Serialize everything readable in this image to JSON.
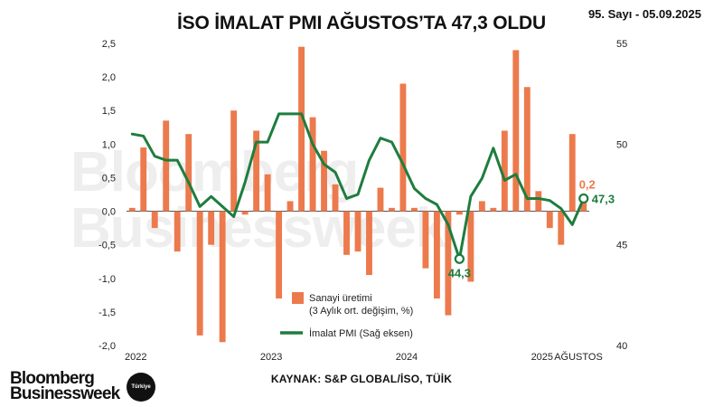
{
  "title": "İSO İMALAT PMI AĞUSTOS’TA 47,3 OLDU",
  "issue": "95. Sayı - 05.09.2025",
  "watermark": [
    "Bloomberg",
    "Businessweek"
  ],
  "source": "KAYNAK: S&P GLOBAL/İSO, TÜİK",
  "brand": {
    "line1": "Bloomberg",
    "line2": "Businessweek",
    "badge": "Türkiye"
  },
  "colors": {
    "bar": "#ec7a4c",
    "line": "#1e7d3e",
    "axis": "#444444"
  },
  "chart_data": {
    "type": "bar+line",
    "left_axis": {
      "ylim": [
        -2.0,
        2.5
      ],
      "ticks": [
        "2,5",
        "2,0",
        "1,5",
        "1,0",
        "0,5",
        "0,0",
        "-0,5",
        "-1,0",
        "-1,5",
        "-2,0"
      ]
    },
    "right_axis": {
      "ylim": [
        40,
        55
      ],
      "ticks": [
        "55",
        "50",
        "45",
        "40"
      ]
    },
    "x_labels": [
      "2022",
      "2023",
      "2024",
      "2025",
      "AĞUSTOS"
    ],
    "series": [
      {
        "name": "Sanayi üretimi",
        "subname": "(3 Aylık ort. değişim, %)",
        "kind": "bar",
        "values": [
          0.05,
          0.95,
          -0.25,
          1.35,
          -0.6,
          1.15,
          -1.85,
          -0.5,
          -1.95,
          1.5,
          -0.05,
          1.2,
          0.55,
          -1.3,
          0.15,
          2.45,
          1.4,
          0.9,
          0.4,
          -0.65,
          -0.6,
          -0.95,
          0.35,
          0.05,
          1.9,
          0.05,
          -0.85,
          -1.3,
          -1.55,
          -0.05,
          -1.05,
          0.15,
          0.05,
          1.2,
          2.4,
          1.85,
          0.3,
          -0.25,
          -0.5,
          1.15,
          0.2
        ]
      },
      {
        "name": "İmalat PMI (Sağ eksen)",
        "kind": "line",
        "values": [
          50.5,
          50.4,
          49.4,
          49.2,
          49.2,
          48.1,
          46.9,
          47.4,
          46.9,
          46.4,
          48.1,
          50.1,
          50.1,
          51.5,
          51.5,
          51.5,
          50.0,
          49.0,
          48.6,
          47.3,
          47.5,
          49.2,
          50.3,
          50.1,
          49.0,
          47.8,
          47.3,
          47.0,
          46.0,
          44.3,
          47.4,
          48.3,
          49.8,
          48.2,
          48.5,
          47.3,
          47.3,
          47.2,
          46.8,
          46.0,
          47.3
        ]
      }
    ],
    "annotations": [
      {
        "text": "44,3",
        "series": 1,
        "index": 29
      },
      {
        "text": "47,3",
        "series": 1,
        "index": 40
      },
      {
        "text": "0,2",
        "series": 0,
        "index": 40
      }
    ]
  }
}
